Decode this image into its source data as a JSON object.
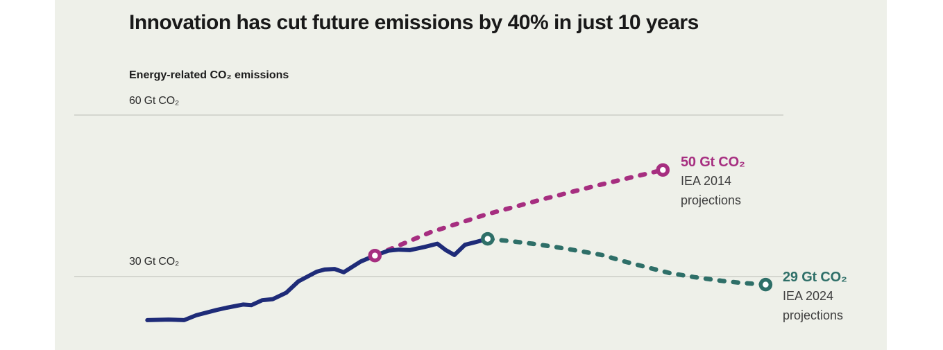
{
  "page": {
    "background": "#ffffff",
    "card_background": "#eef0e9"
  },
  "chart_data": {
    "type": "line",
    "title": "Innovation has cut future emissions by 40% in just 10 years",
    "subtitle": "Energy-related CO₂ emissions",
    "unit": "Gt CO₂",
    "grid": "horizontal-only",
    "legend": "none (direct endpoint labels)",
    "title_color": "#191919",
    "gridline_color": "#c4c5c0",
    "annotation_text_color": "#3e3e3e",
    "y_axis": {
      "gridlines": [
        {
          "value": 60,
          "label": "60 Gt CO₂"
        },
        {
          "value": 30,
          "label": "30 Gt CO₂"
        }
      ]
    },
    "x_axis": {
      "tick_labels_visible": false
    },
    "series": [
      {
        "id": "historical-emissions",
        "name": "Historical energy-related CO₂ emissions",
        "color": "#1e2b78",
        "dashed": false,
        "rings": false,
        "points_format": [
          "x percent of plot width",
          "Gt CO2"
        ],
        "points": [
          [
            10.3,
            21.9
          ],
          [
            13.3,
            22.0
          ],
          [
            15.5,
            21.9
          ],
          [
            17.2,
            22.8
          ],
          [
            20.1,
            23.8
          ],
          [
            21.5,
            24.2
          ],
          [
            23.8,
            24.8
          ],
          [
            25.0,
            24.7
          ],
          [
            26.5,
            25.6
          ],
          [
            28.0,
            25.8
          ],
          [
            29.9,
            27.0
          ],
          [
            31.6,
            29.1
          ],
          [
            34.2,
            30.9
          ],
          [
            35.3,
            31.3
          ],
          [
            36.7,
            31.4
          ],
          [
            38.0,
            30.8
          ],
          [
            40.4,
            32.8
          ],
          [
            42.4,
            33.9
          ],
          [
            44.3,
            34.8
          ],
          [
            45.8,
            35.0
          ],
          [
            47.3,
            34.9
          ],
          [
            49.4,
            35.5
          ],
          [
            51.2,
            36.1
          ],
          [
            52.4,
            34.9
          ],
          [
            53.6,
            34.0
          ],
          [
            55.1,
            35.9
          ],
          [
            56.6,
            36.4
          ],
          [
            58.3,
            37.0
          ]
        ]
      },
      {
        "id": "iea-2014-projection",
        "name": "IEA 2014 projections",
        "color": "#a62e80",
        "dashed": true,
        "rings": true,
        "end_value_label": "50 Gt CO₂",
        "points_format": [
          "x percent of plot width",
          "Gt CO2"
        ],
        "points": [
          [
            42.4,
            33.9
          ],
          [
            50.2,
            38.2
          ],
          [
            58.0,
            41.5
          ],
          [
            65.9,
            44.3
          ],
          [
            73.7,
            46.9
          ],
          [
            83.0,
            49.8
          ]
        ]
      },
      {
        "id": "iea-2024-projection",
        "name": "IEA 2024 projections",
        "color": "#2e6f68",
        "dashed": true,
        "rings": true,
        "end_value_label": "29 Gt CO₂",
        "points_format": [
          "x percent of plot width",
          "Gt CO2"
        ],
        "points": [
          [
            58.3,
            37.0
          ],
          [
            61.3,
            36.6
          ],
          [
            64.6,
            36.1
          ],
          [
            67.8,
            35.5
          ],
          [
            71.0,
            34.8
          ],
          [
            74.4,
            34.0
          ],
          [
            77.6,
            32.8
          ],
          [
            80.8,
            31.7
          ],
          [
            84.1,
            30.6
          ],
          [
            87.4,
            29.9
          ],
          [
            91.3,
            29.2
          ],
          [
            94.2,
            28.8
          ],
          [
            97.5,
            28.5
          ]
        ]
      }
    ],
    "annotations": [
      {
        "value": "50 Gt CO₂",
        "source": "IEA 2014",
        "source2": "projections",
        "color": "#a62e80"
      },
      {
        "value": "29 Gt CO₂",
        "source": "IEA 2024",
        "source2": "projections",
        "color": "#2e6f68"
      }
    ]
  }
}
